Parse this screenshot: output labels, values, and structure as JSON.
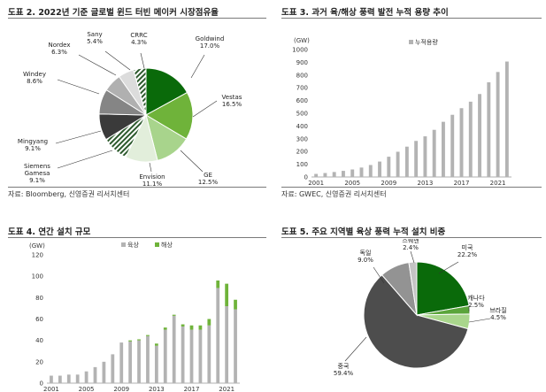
{
  "charts": [
    {
      "title": "도표 2. 2022년 기준 글로벌 윈드 터빈 메이커 시장점유율",
      "source": "자료: Bloomberg, 신영증권 리서치센터",
      "chart_data": {
        "type": "pie",
        "labels": [
          "Goldwind",
          "Vestas",
          "GE",
          "Envision",
          "Siemens Gamesa",
          "Mingyang",
          "Windey",
          "Nordex",
          "Sany",
          "CRRC"
        ],
        "values": [
          17.0,
          16.5,
          12.5,
          11.1,
          9.1,
          9.1,
          8.6,
          6.3,
          5.4,
          4.3
        ],
        "value_labels": [
          "17.0%",
          "16.5%",
          "12.5%",
          "11.1%",
          "9.1%",
          "9.1%",
          "8.6%",
          "6.3%",
          "5.4%",
          "4.3%"
        ],
        "colors": [
          "#0a6a0a",
          "#6fb33a",
          "#a8d48c",
          "#e2eedb",
          "#2d5a2d",
          "#3a3a3a",
          "#858585",
          "#b0b0b0",
          "#dcdcdc",
          "#ffffff"
        ],
        "hatched": [
          false,
          false,
          false,
          false,
          true,
          false,
          false,
          false,
          false,
          true
        ]
      }
    },
    {
      "title": "도표 3. 과거 육/해상 풍력 발전 누적 용량 추이",
      "source": "자료: GWEC, 신영증권 리서치센터",
      "chart_data": {
        "type": "bar",
        "ylabel": "(GW)",
        "ylim": [
          0,
          1000
        ],
        "yticks": [
          0,
          100,
          200,
          300,
          400,
          500,
          600,
          700,
          800,
          900,
          1000
        ],
        "x": [
          2001,
          2002,
          2003,
          2004,
          2005,
          2006,
          2007,
          2008,
          2009,
          2010,
          2011,
          2012,
          2013,
          2014,
          2015,
          2016,
          2017,
          2018,
          2019,
          2020,
          2021,
          2022
        ],
        "xtick_labels": [
          "2001",
          "2005",
          "2009",
          "2013",
          "2017",
          "2021"
        ],
        "series": [
          {
            "name": "누적용량",
            "values": [
              24,
              31,
              39,
              48,
              59,
              74,
              94,
              121,
              159,
              198,
              238,
              283,
              319,
              370,
              433,
              488,
              540,
              591,
              651,
              743,
              824,
              906
            ]
          }
        ],
        "colors": [
          "#b3b3b3"
        ],
        "legend": "top-left"
      }
    },
    {
      "title": "도표 4. 연간 설치 규모",
      "chart_data": {
        "type": "bar",
        "stacked": true,
        "ylabel": "(GW)",
        "ylim": [
          0,
          120
        ],
        "yticks": [
          0,
          20,
          40,
          60,
          80,
          100,
          120
        ],
        "x": [
          2001,
          2002,
          2003,
          2004,
          2005,
          2006,
          2007,
          2008,
          2009,
          2010,
          2011,
          2012,
          2013,
          2014,
          2015,
          2016,
          2017,
          2018,
          2019,
          2020,
          2021,
          2022
        ],
        "xtick_labels": [
          "2001",
          "2005",
          "2009",
          "2013",
          "2017",
          "2021"
        ],
        "series": [
          {
            "name": "육상",
            "values": [
              7,
              7,
              8,
              8,
              11,
              15,
              20,
              27,
              38,
              39,
              40,
              44,
              35,
              50,
              63,
              53,
              50,
              50,
              54,
              89,
              72,
              69
            ]
          },
          {
            "name": "해상",
            "values": [
              0,
              0,
              0,
              0,
              0,
              0,
              0,
              0,
              0,
              1,
              1,
              1,
              2,
              2,
              1,
              2,
              4,
              4,
              6,
              7,
              21,
              9
            ]
          }
        ],
        "colors": [
          "#b3b3b3",
          "#6fb33a"
        ],
        "legend": "top-center"
      }
    },
    {
      "title": "도표 5. 주요 지역별 육상 풍력 누적 설치 비중",
      "chart_data": {
        "type": "pie",
        "labels": [
          "미국",
          "캐나다",
          "브라질",
          "중국",
          "독일",
          "스웨덴"
        ],
        "values": [
          22.2,
          2.5,
          4.5,
          59.4,
          9.0,
          2.4
        ],
        "value_labels": [
          "22.2%",
          "2.5%",
          "4.5%",
          "59.4%",
          "9.0%",
          "2.4%"
        ],
        "colors": [
          "#0a6a0a",
          "#5aa53a",
          "#a9d68c",
          "#4d4d4d",
          "#939393",
          "#c4c4c4"
        ]
      }
    }
  ]
}
